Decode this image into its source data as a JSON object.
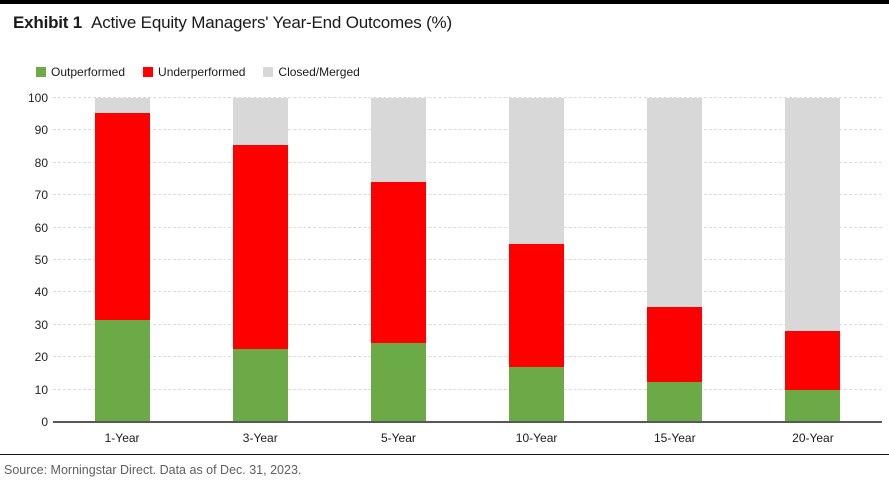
{
  "header": {
    "exhibit_label": "Exhibit 1",
    "title": "Active Equity Managers' Year-End Outcomes (%)"
  },
  "legend": {
    "position": "top-left",
    "items": [
      {
        "label": "Outperformed",
        "color": "#6BAA47"
      },
      {
        "label": "Underperformed",
        "color": "#FF0000"
      },
      {
        "label": "Closed/Merged",
        "color": "#D8D8D8"
      }
    ]
  },
  "chart_data": {
    "type": "bar",
    "stacked": true,
    "title": "Active Equity Managers' Year-End Outcomes (%)",
    "xlabel": "",
    "ylabel": "",
    "categories": [
      "1-Year",
      "3-Year",
      "5-Year",
      "10-Year",
      "15-Year",
      "20-Year"
    ],
    "series": [
      {
        "name": "Outperformed",
        "color": "#6BAA47",
        "values": [
          31.5,
          22.5,
          24.5,
          17,
          12.5,
          10
        ]
      },
      {
        "name": "Underperformed",
        "color": "#FF0000",
        "values": [
          64,
          63,
          49.5,
          38,
          23,
          18
        ]
      },
      {
        "name": "Closed/Merged",
        "color": "#D8D8D8",
        "values": [
          4.5,
          14.5,
          26,
          45,
          64.5,
          72
        ]
      }
    ],
    "ylim": [
      0,
      100
    ],
    "yticks": [
      0,
      10,
      20,
      30,
      40,
      50,
      60,
      70,
      80,
      90,
      100
    ],
    "grid": "horizontal-dashed",
    "legend_position": "top-left"
  },
  "footer": {
    "source": "Source: Morningstar Direct. Data as of Dec. 31, 2023."
  },
  "colors": {
    "top_rule": "#000000",
    "axis_line": "#58585a",
    "gridline": "#dbdbdb",
    "divider": "#111111",
    "source_text": "#5f5f5f"
  }
}
